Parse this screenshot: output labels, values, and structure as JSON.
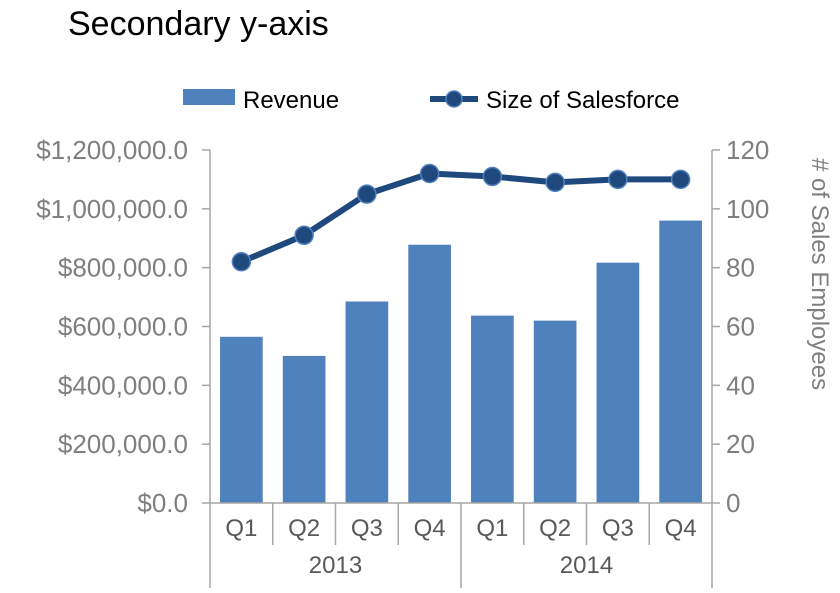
{
  "chart_data": {
    "type": "bar",
    "title": "Secondary y-axis",
    "categories": [
      "Q1",
      "Q2",
      "Q3",
      "Q4",
      "Q1",
      "Q2",
      "Q3",
      "Q4"
    ],
    "groups": [
      {
        "label": "2013",
        "span": 4
      },
      {
        "label": "2014",
        "span": 4
      }
    ],
    "series": [
      {
        "name": "Revenue",
        "type": "bar",
        "axis": "left",
        "values": [
          565000,
          500000,
          685000,
          878000,
          637000,
          620000,
          817000,
          960000
        ]
      },
      {
        "name": "Size of Salesforce",
        "type": "line",
        "axis": "right",
        "values": [
          82,
          91,
          105,
          112,
          111,
          109,
          110,
          110
        ]
      }
    ],
    "ylabel": "",
    "y2label": "# of Sales Employees",
    "ylim": [
      0,
      1200000
    ],
    "y2lim": [
      0,
      120
    ],
    "yticks": [
      "$0.0",
      "$200,000.0",
      "$400,000.0",
      "$600,000.0",
      "$800,000.0",
      "$1,000,000.0",
      "$1,200,000.0"
    ],
    "y2ticks": [
      "0",
      "20",
      "40",
      "60",
      "80",
      "100",
      "120"
    ],
    "legend_position": "top",
    "grid": false,
    "colors": {
      "bar": "#4f81bd",
      "line": "#1f497d",
      "axis": "#a6a6a6",
      "tick_text": "#7f7f7f",
      "text": "#000000"
    }
  }
}
